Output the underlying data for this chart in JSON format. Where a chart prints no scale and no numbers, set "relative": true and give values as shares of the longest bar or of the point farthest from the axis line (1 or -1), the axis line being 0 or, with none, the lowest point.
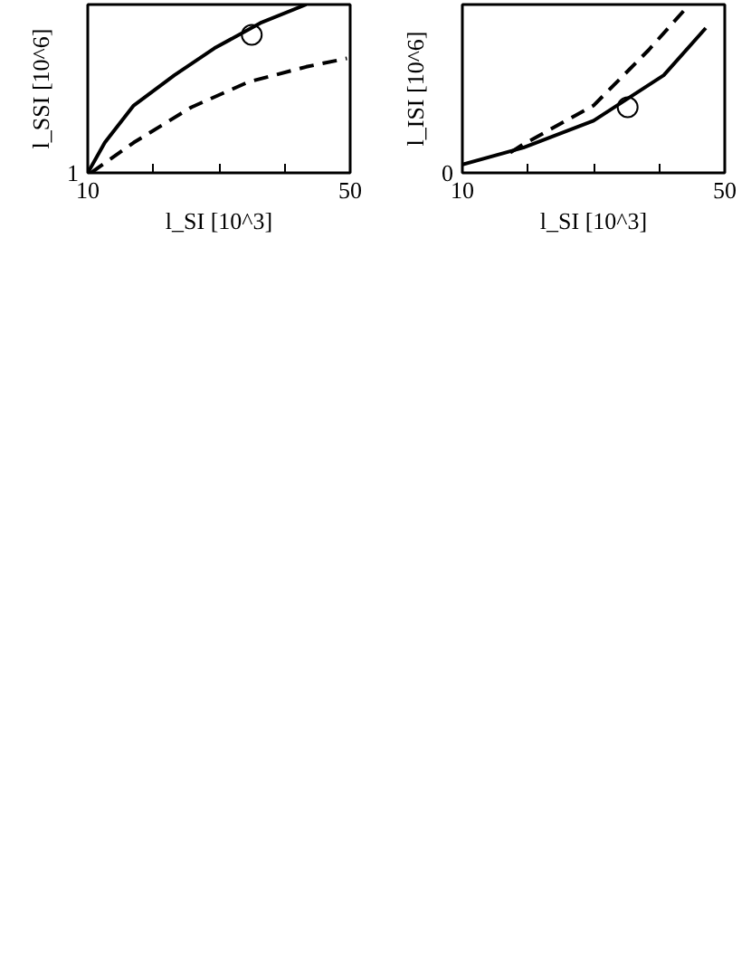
{
  "chart_data": [
    {
      "type": "line",
      "relative": true,
      "xlabel": "l_SI [10^3]",
      "ylabel": "l_SSI [10^6]",
      "xlim": [
        10,
        50
      ],
      "xticks": [
        10,
        {
          "value": 20,
          "label": null
        },
        {
          "value": 30,
          "label": null
        },
        {
          "value": 40,
          "label": null
        },
        50
      ],
      "grid": false,
      "annotations": [
        "1"
      ],
      "series": [
        {
          "color": "#000000",
          "line_style": "solid",
          "x": [
            10,
            12.6,
            17.0,
            23.2,
            29.3,
            36.3,
            43.3
          ],
          "values": [
            0,
            0.18,
            0.4,
            0.58,
            0.74,
            0.89,
            1.0
          ]
        },
        {
          "color": "#000000",
          "line_style": "dashed",
          "x": [
            10.5,
            17.0,
            25.8,
            34.5,
            43.3,
            49.5
          ],
          "values": [
            0,
            0.18,
            0.39,
            0.54,
            0.63,
            0.68
          ]
        },
        {
          "type": "scatter",
          "marker": "circle",
          "color": "#000000",
          "x": [
            35.0
          ],
          "values": [
            0.82
          ]
        }
      ]
    },
    {
      "type": "line",
      "relative": true,
      "xlabel": "l_SI [10^3]",
      "ylabel": "l_ISI [10^6]",
      "xlim": [
        10,
        50
      ],
      "xticks": [
        10,
        {
          "value": 20,
          "label": null
        },
        {
          "value": 30,
          "label": null
        },
        {
          "value": 40,
          "label": null
        },
        50
      ],
      "grid": false,
      "annotations": [
        "0"
      ],
      "series": [
        {
          "color": "#000000",
          "line_style": "solid",
          "x": [
            10,
            19.3,
            30,
            40.7,
            47.1
          ],
          "values": [
            0.05,
            0.15,
            0.31,
            0.58,
            0.86
          ]
        },
        {
          "color": "#000000",
          "line_style": "dashed",
          "x": [
            17.3,
            19.3,
            30,
            38.4,
            44.6
          ],
          "values": [
            0.12,
            0.17,
            0.4,
            0.73,
            1.0
          ]
        },
        {
          "type": "scatter",
          "marker": "circle",
          "color": "#000000",
          "x": [
            35.2
          ],
          "values": [
            0.39
          ]
        }
      ]
    }
  ]
}
